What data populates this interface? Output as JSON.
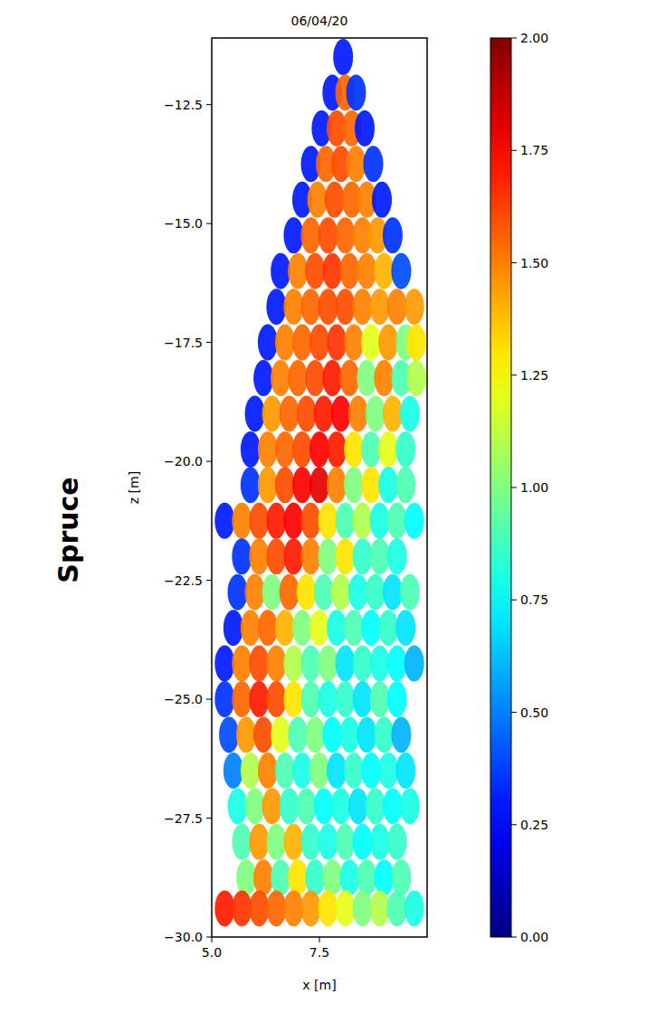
{
  "chart_data": {
    "type": "scatter",
    "title": "06/04/20",
    "row_label": "Spruce",
    "x_label": "x [m]",
    "y_label": "z [m]",
    "xlim": [
      5.0,
      10.0
    ],
    "ylim": [
      -30.0,
      -11.1
    ],
    "xticks": [
      {
        "value": 5.0,
        "label": "5.0"
      },
      7.5
    ],
    "yticks": [
      {
        "value": -12.5,
        "label": "−12.5"
      },
      {
        "value": -15.0,
        "label": "−15.0"
      },
      {
        "value": -17.5,
        "label": "−17.5"
      },
      {
        "value": -20.0,
        "label": "−20.0"
      },
      {
        "value": -22.5,
        "label": "−22.5"
      },
      {
        "value": -25.0,
        "label": "−25.0"
      },
      {
        "value": -27.5,
        "label": "−27.5"
      },
      {
        "value": -30.0,
        "label": "−30.0"
      }
    ],
    "colorbar": {
      "lim": [
        0,
        2
      ],
      "ticks": [
        {
          "value": 0,
          "label": "0.00"
        },
        0.25,
        {
          "value": 0.5,
          "label": "0.50"
        },
        0.75,
        {
          "value": 1,
          "label": "1.00"
        },
        1.25,
        {
          "value": 1.5,
          "label": "1.50"
        },
        1.75,
        {
          "value": 2,
          "label": "2.00"
        }
      ]
    },
    "series": [
      {
        "marker": "ellipse",
        "points": [
          [
            8.05,
            -11.5,
            0.3
          ],
          [
            7.8,
            -12.25,
            0.3
          ],
          [
            8.1,
            -12.25,
            1.55
          ],
          [
            8.35,
            -12.25,
            0.35
          ],
          [
            7.55,
            -13.0,
            0.3
          ],
          [
            7.9,
            -13.0,
            1.6
          ],
          [
            8.25,
            -13.0,
            1.55
          ],
          [
            8.55,
            -13.0,
            0.3
          ],
          [
            7.3,
            -13.75,
            0.3
          ],
          [
            7.65,
            -13.75,
            1.55
          ],
          [
            8.0,
            -13.75,
            1.6
          ],
          [
            8.35,
            -13.75,
            1.5
          ],
          [
            8.75,
            -13.75,
            0.35
          ],
          [
            7.1,
            -14.5,
            0.3
          ],
          [
            7.45,
            -14.5,
            1.5
          ],
          [
            7.85,
            -14.5,
            1.6
          ],
          [
            8.25,
            -14.5,
            1.55
          ],
          [
            8.6,
            -14.5,
            1.5
          ],
          [
            8.95,
            -14.5,
            0.3
          ],
          [
            6.9,
            -15.25,
            0.3
          ],
          [
            7.3,
            -15.25,
            1.55
          ],
          [
            7.7,
            -15.25,
            1.6
          ],
          [
            8.1,
            -15.25,
            1.55
          ],
          [
            8.5,
            -15.25,
            1.5
          ],
          [
            8.85,
            -15.25,
            1.45
          ],
          [
            9.2,
            -15.25,
            0.35
          ],
          [
            6.6,
            -16.0,
            0.3
          ],
          [
            7.0,
            -16.0,
            1.5
          ],
          [
            7.4,
            -16.0,
            1.6
          ],
          [
            7.8,
            -16.0,
            1.65
          ],
          [
            8.2,
            -16.0,
            1.55
          ],
          [
            8.6,
            -16.0,
            1.5
          ],
          [
            9.0,
            -16.0,
            1.4
          ],
          [
            9.4,
            -16.0,
            0.4
          ],
          [
            6.5,
            -16.75,
            0.3
          ],
          [
            6.9,
            -16.75,
            1.5
          ],
          [
            7.3,
            -16.75,
            1.55
          ],
          [
            7.7,
            -16.75,
            1.6
          ],
          [
            8.1,
            -16.75,
            1.6
          ],
          [
            8.5,
            -16.75,
            1.5
          ],
          [
            8.9,
            -16.75,
            1.45
          ],
          [
            9.3,
            -16.75,
            1.5
          ],
          [
            9.7,
            -16.75,
            1.45
          ],
          [
            6.3,
            -17.5,
            0.3
          ],
          [
            6.7,
            -17.5,
            1.5
          ],
          [
            7.1,
            -17.5,
            1.55
          ],
          [
            7.5,
            -17.5,
            1.6
          ],
          [
            7.9,
            -17.5,
            1.65
          ],
          [
            8.3,
            -17.5,
            1.5
          ],
          [
            8.7,
            -17.5,
            1.2
          ],
          [
            9.1,
            -17.5,
            1.45
          ],
          [
            9.5,
            -17.5,
            1.0
          ],
          [
            9.75,
            -17.5,
            1.3
          ],
          [
            6.2,
            -18.25,
            0.3
          ],
          [
            6.6,
            -18.25,
            1.5
          ],
          [
            7.0,
            -18.25,
            1.55
          ],
          [
            7.4,
            -18.25,
            1.6
          ],
          [
            7.8,
            -18.25,
            1.7
          ],
          [
            8.2,
            -18.25,
            1.55
          ],
          [
            8.6,
            -18.25,
            1.0
          ],
          [
            9.0,
            -18.25,
            1.5
          ],
          [
            9.4,
            -18.25,
            0.9
          ],
          [
            9.75,
            -18.25,
            1.1
          ],
          [
            6.0,
            -19.0,
            0.3
          ],
          [
            6.4,
            -19.0,
            1.45
          ],
          [
            6.8,
            -19.0,
            1.55
          ],
          [
            7.2,
            -19.0,
            1.6
          ],
          [
            7.6,
            -19.0,
            1.7
          ],
          [
            8.0,
            -19.0,
            1.75
          ],
          [
            8.4,
            -19.0,
            1.5
          ],
          [
            8.8,
            -19.0,
            1.0
          ],
          [
            9.2,
            -19.0,
            1.4
          ],
          [
            9.6,
            -19.0,
            0.8
          ],
          [
            5.9,
            -19.75,
            0.3
          ],
          [
            6.3,
            -19.75,
            1.5
          ],
          [
            6.7,
            -19.75,
            1.55
          ],
          [
            7.1,
            -19.75,
            1.6
          ],
          [
            7.5,
            -19.75,
            1.75
          ],
          [
            7.9,
            -19.75,
            1.7
          ],
          [
            8.3,
            -19.75,
            1.3
          ],
          [
            8.7,
            -19.75,
            0.9
          ],
          [
            9.1,
            -19.75,
            1.2
          ],
          [
            9.5,
            -19.75,
            0.85
          ],
          [
            5.9,
            -20.5,
            0.35
          ],
          [
            6.3,
            -20.5,
            1.45
          ],
          [
            6.7,
            -20.5,
            1.6
          ],
          [
            7.1,
            -20.5,
            1.75
          ],
          [
            7.5,
            -20.5,
            1.8
          ],
          [
            7.9,
            -20.5,
            1.5
          ],
          [
            8.3,
            -20.5,
            1.0
          ],
          [
            8.7,
            -20.5,
            1.3
          ],
          [
            9.1,
            -20.5,
            0.8
          ],
          [
            9.5,
            -20.5,
            0.9
          ],
          [
            5.3,
            -21.25,
            0.3
          ],
          [
            5.7,
            -21.25,
            1.5
          ],
          [
            6.1,
            -21.25,
            1.6
          ],
          [
            6.5,
            -21.25,
            1.7
          ],
          [
            6.9,
            -21.25,
            1.75
          ],
          [
            7.3,
            -21.25,
            1.6
          ],
          [
            7.7,
            -21.25,
            1.3
          ],
          [
            8.1,
            -21.25,
            0.9
          ],
          [
            8.5,
            -21.25,
            1.1
          ],
          [
            8.9,
            -21.25,
            0.8
          ],
          [
            9.3,
            -21.25,
            0.9
          ],
          [
            9.7,
            -21.25,
            0.75
          ],
          [
            5.7,
            -22.0,
            0.35
          ],
          [
            6.1,
            -22.0,
            1.5
          ],
          [
            6.5,
            -22.0,
            1.6
          ],
          [
            6.9,
            -22.0,
            1.7
          ],
          [
            7.3,
            -22.0,
            1.5
          ],
          [
            7.7,
            -22.0,
            1.0
          ],
          [
            8.1,
            -22.0,
            1.3
          ],
          [
            8.5,
            -22.0,
            0.85
          ],
          [
            8.9,
            -22.0,
            0.9
          ],
          [
            9.3,
            -22.0,
            0.8
          ],
          [
            5.6,
            -22.75,
            0.35
          ],
          [
            6.0,
            -22.75,
            1.5
          ],
          [
            6.4,
            -22.75,
            1.0
          ],
          [
            6.8,
            -22.75,
            1.55
          ],
          [
            7.2,
            -22.75,
            1.3
          ],
          [
            7.6,
            -22.75,
            0.9
          ],
          [
            8.0,
            -22.75,
            1.1
          ],
          [
            8.4,
            -22.75,
            0.8
          ],
          [
            8.8,
            -22.75,
            0.85
          ],
          [
            9.2,
            -22.75,
            0.7
          ],
          [
            9.6,
            -22.75,
            0.9
          ],
          [
            5.5,
            -23.5,
            0.3
          ],
          [
            5.9,
            -23.5,
            1.5
          ],
          [
            6.3,
            -23.5,
            1.55
          ],
          [
            6.7,
            -23.5,
            1.4
          ],
          [
            7.1,
            -23.5,
            1.0
          ],
          [
            7.5,
            -23.5,
            1.2
          ],
          [
            7.9,
            -23.5,
            0.8
          ],
          [
            8.3,
            -23.5,
            0.9
          ],
          [
            8.7,
            -23.5,
            0.75
          ],
          [
            9.1,
            -23.5,
            0.85
          ],
          [
            9.5,
            -23.5,
            0.7
          ],
          [
            5.3,
            -24.25,
            0.3
          ],
          [
            5.7,
            -24.25,
            1.5
          ],
          [
            6.1,
            -24.25,
            1.6
          ],
          [
            6.5,
            -24.25,
            1.5
          ],
          [
            6.9,
            -24.25,
            1.1
          ],
          [
            7.3,
            -24.25,
            0.9
          ],
          [
            7.7,
            -24.25,
            1.0
          ],
          [
            8.1,
            -24.25,
            0.7
          ],
          [
            8.5,
            -24.25,
            0.85
          ],
          [
            8.9,
            -24.25,
            0.8
          ],
          [
            9.3,
            -24.25,
            0.75
          ],
          [
            9.7,
            -24.25,
            0.6
          ],
          [
            5.3,
            -25.0,
            0.35
          ],
          [
            5.7,
            -25.0,
            1.55
          ],
          [
            6.1,
            -25.0,
            1.7
          ],
          [
            6.5,
            -25.0,
            1.6
          ],
          [
            6.9,
            -25.0,
            1.3
          ],
          [
            7.3,
            -25.0,
            0.9
          ],
          [
            7.7,
            -25.0,
            0.8
          ],
          [
            8.1,
            -25.0,
            0.85
          ],
          [
            8.5,
            -25.0,
            0.7
          ],
          [
            8.9,
            -25.0,
            0.9
          ],
          [
            9.3,
            -25.0,
            0.75
          ],
          [
            5.4,
            -25.75,
            0.4
          ],
          [
            5.8,
            -25.75,
            1.45
          ],
          [
            6.2,
            -25.75,
            1.6
          ],
          [
            6.6,
            -25.75,
            1.2
          ],
          [
            7.0,
            -25.75,
            0.9
          ],
          [
            7.4,
            -25.75,
            1.0
          ],
          [
            7.8,
            -25.75,
            0.75
          ],
          [
            8.2,
            -25.75,
            0.8
          ],
          [
            8.6,
            -25.75,
            0.7
          ],
          [
            9.0,
            -25.75,
            0.85
          ],
          [
            9.4,
            -25.75,
            0.6
          ],
          [
            5.5,
            -26.5,
            0.5
          ],
          [
            5.9,
            -26.5,
            1.1
          ],
          [
            6.3,
            -26.5,
            1.5
          ],
          [
            6.7,
            -26.5,
            0.9
          ],
          [
            7.1,
            -26.5,
            0.8
          ],
          [
            7.5,
            -26.5,
            1.0
          ],
          [
            7.9,
            -26.5,
            0.7
          ],
          [
            8.3,
            -26.5,
            0.85
          ],
          [
            8.7,
            -26.5,
            0.75
          ],
          [
            9.1,
            -26.5,
            0.8
          ],
          [
            9.5,
            -26.5,
            0.7
          ],
          [
            5.6,
            -27.25,
            0.8
          ],
          [
            6.0,
            -27.25,
            1.0
          ],
          [
            6.4,
            -27.25,
            1.45
          ],
          [
            6.8,
            -27.25,
            0.85
          ],
          [
            7.2,
            -27.25,
            0.9
          ],
          [
            7.6,
            -27.25,
            0.75
          ],
          [
            8.0,
            -27.25,
            0.8
          ],
          [
            8.4,
            -27.25,
            0.7
          ],
          [
            8.8,
            -27.25,
            0.85
          ],
          [
            9.2,
            -27.25,
            0.75
          ],
          [
            9.6,
            -27.25,
            0.8
          ],
          [
            5.7,
            -28.0,
            0.9
          ],
          [
            6.1,
            -28.0,
            1.45
          ],
          [
            6.5,
            -28.0,
            1.0
          ],
          [
            6.9,
            -28.0,
            1.4
          ],
          [
            7.3,
            -28.0,
            0.85
          ],
          [
            7.7,
            -28.0,
            0.8
          ],
          [
            8.1,
            -28.0,
            0.9
          ],
          [
            8.5,
            -28.0,
            0.75
          ],
          [
            8.9,
            -28.0,
            0.8
          ],
          [
            9.3,
            -28.0,
            0.85
          ],
          [
            5.8,
            -28.75,
            1.0
          ],
          [
            6.2,
            -28.75,
            1.5
          ],
          [
            6.6,
            -28.75,
            0.9
          ],
          [
            7.0,
            -28.75,
            1.3
          ],
          [
            7.4,
            -28.75,
            0.85
          ],
          [
            7.8,
            -28.75,
            1.0
          ],
          [
            8.2,
            -28.75,
            0.8
          ],
          [
            8.6,
            -28.75,
            0.9
          ],
          [
            9.0,
            -28.75,
            0.75
          ],
          [
            9.4,
            -28.75,
            0.9
          ],
          [
            5.3,
            -29.4,
            1.7
          ],
          [
            5.7,
            -29.4,
            1.65
          ],
          [
            6.1,
            -29.4,
            1.6
          ],
          [
            6.5,
            -29.4,
            1.55
          ],
          [
            6.9,
            -29.4,
            1.5
          ],
          [
            7.3,
            -29.4,
            1.45
          ],
          [
            7.7,
            -29.4,
            1.3
          ],
          [
            8.1,
            -29.4,
            1.2
          ],
          [
            8.5,
            -29.4,
            1.0
          ],
          [
            8.9,
            -29.4,
            1.1
          ],
          [
            9.3,
            -29.4,
            0.9
          ],
          [
            9.7,
            -29.4,
            0.8
          ]
        ]
      }
    ]
  }
}
